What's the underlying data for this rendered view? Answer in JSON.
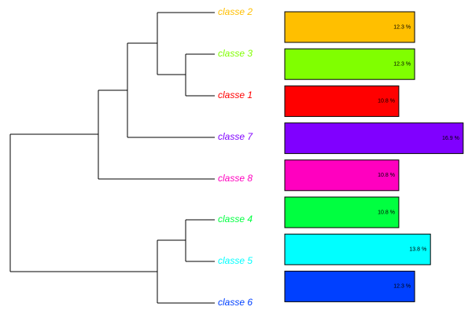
{
  "chart_data": {
    "type": "bar",
    "categories": [
      "classe 2",
      "classe 3",
      "classe 1",
      "classe 7",
      "classe 8",
      "classe 4",
      "classe 5",
      "classe 6"
    ],
    "colors": [
      "#FFBF00",
      "#80FF00",
      "#FF0000",
      "#8000FF",
      "#FF00BF",
      "#00FF40",
      "#00FFFF",
      "#0040FF"
    ],
    "values": [
      12.3,
      12.3,
      10.8,
      16.9,
      10.8,
      10.8,
      13.8,
      12.3
    ],
    "value_labels": [
      "12.3 %",
      "12.3 %",
      "10.8 %",
      "16.9 %",
      "10.8 %",
      "10.8 %",
      "13.8 %",
      "12.3 %"
    ]
  }
}
